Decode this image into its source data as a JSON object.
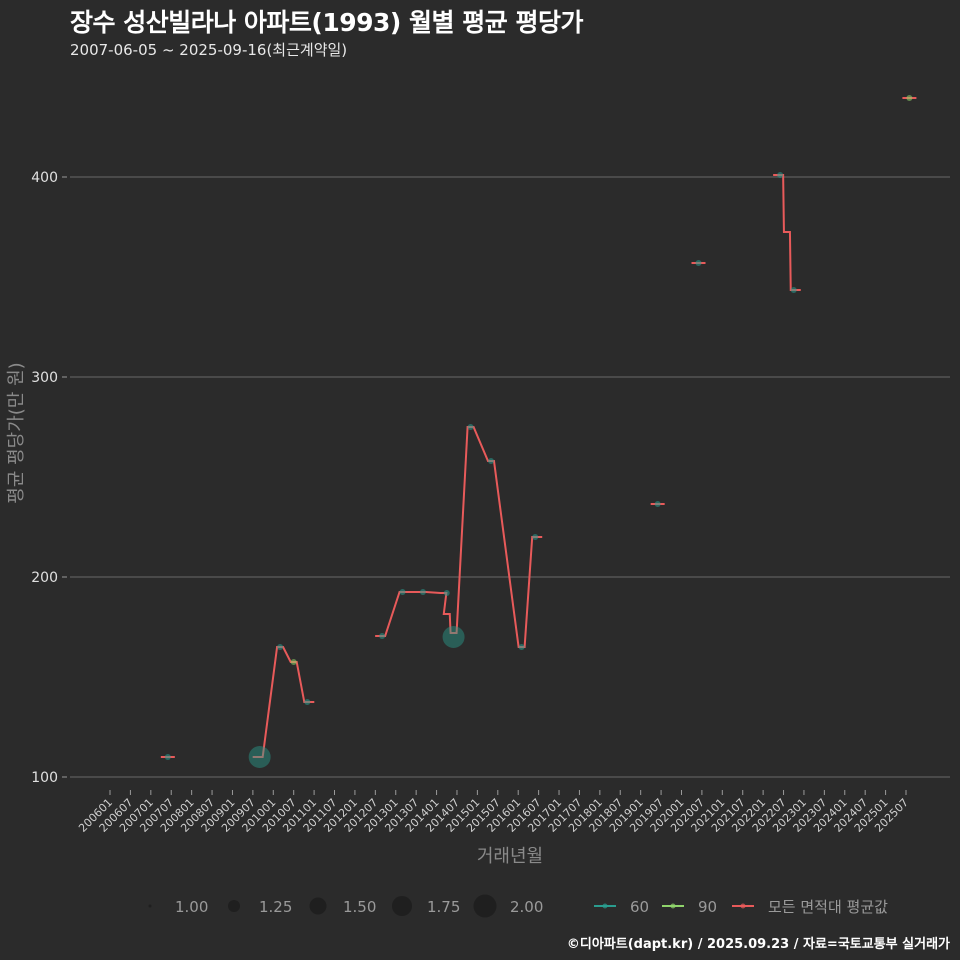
{
  "header": {
    "title": "장수 성산빌라나 아파트(1993) 월별 평균 평당가",
    "subtitle": "2007-06-05 ~ 2025-09-16(최근계약일)"
  },
  "footer": {
    "credit": "©디아파트(dapt.kr) / 2025.09.23 / 자료=국토교통부 실거래가"
  },
  "colors": {
    "background": "#2b2b2b",
    "grid": "#6a6a6a",
    "series_60": "#2a9d8f",
    "series_90": "#8fd46b",
    "series_avg": "#e85a5a"
  },
  "chart_data": {
    "type": "line",
    "title": "장수 성산빌라나 아파트(1993) 월별 평균 평당가",
    "subtitle": "2007-06-05 ~ 2025-09-16(최근계약일)",
    "xlabel": "거래년월",
    "ylabel": "평균 평당가(만 원)",
    "ylim": [
      95,
      445
    ],
    "yticks": [
      100,
      200,
      300,
      400
    ],
    "grid": true,
    "x_ticks": [
      "200601",
      "200607",
      "200701",
      "200707",
      "200801",
      "200807",
      "200901",
      "200907",
      "201001",
      "201007",
      "201101",
      "201107",
      "201201",
      "201207",
      "201301",
      "201307",
      "201401",
      "201407",
      "201501",
      "201507",
      "201601",
      "201607",
      "201701",
      "201707",
      "201801",
      "201807",
      "201901",
      "201907",
      "202001",
      "202007",
      "202101",
      "202107",
      "202201",
      "202207",
      "202301",
      "202307",
      "202401",
      "202407",
      "202501",
      "202507"
    ],
    "legend": {
      "size": {
        "title": "",
        "values": [
          "1.00",
          "1.25",
          "1.50",
          "1.75",
          "2.00"
        ]
      },
      "color": [
        {
          "name": "60",
          "color": "#2a9d8f"
        },
        {
          "name": "90",
          "color": "#8fd46b"
        },
        {
          "name": "모든 면적대 평균값",
          "color": "#e85a5a"
        }
      ],
      "position": "bottom"
    },
    "series": [
      {
        "name": "60",
        "points": [
          {
            "x": "200706",
            "y": 110,
            "size": 1
          },
          {
            "x": "200909",
            "y": 110,
            "size": 2
          },
          {
            "x": "201003",
            "y": 165,
            "size": 1
          },
          {
            "x": "201011",
            "y": 137.5,
            "size": 1
          },
          {
            "x": "201209",
            "y": 170.5,
            "size": 1
          },
          {
            "x": "201303",
            "y": 192.5,
            "size": 1
          },
          {
            "x": "201309",
            "y": 192.5,
            "size": 1
          },
          {
            "x": "201404",
            "y": 192,
            "size": 1
          },
          {
            "x": "201406",
            "y": 170,
            "size": 2
          },
          {
            "x": "201411",
            "y": 275,
            "size": 1
          },
          {
            "x": "201505",
            "y": 258,
            "size": 1
          },
          {
            "x": "201514",
            "y": 165,
            "size": 1
          },
          {
            "x": "201606",
            "y": 220,
            "size": 1
          },
          {
            "x": "201906",
            "y": 236.5,
            "size": 1
          },
          {
            "x": "202006",
            "y": 357,
            "size": 1
          },
          {
            "x": "202206",
            "y": 401,
            "size": 1
          },
          {
            "x": "202210",
            "y": 343.5,
            "size": 1
          }
        ]
      },
      {
        "name": "90",
        "points": [
          {
            "x": "201007",
            "y": 157.5,
            "size": 1
          },
          {
            "x": "202508",
            "y": 439.5,
            "size": 1
          }
        ]
      },
      {
        "name": "모든 면적대 평균값",
        "points": [
          {
            "x": "200706",
            "y": 110
          },
          {
            "x": "200909",
            "y": 110
          },
          {
            "x": "201003",
            "y": 165
          },
          {
            "x": "201007",
            "y": 157.5
          },
          {
            "x": "201011",
            "y": 137.5
          },
          {
            "x": "201209",
            "y": 170.5
          },
          {
            "x": "201303",
            "y": 192.5
          },
          {
            "x": "201309",
            "y": 192.5
          },
          {
            "x": "201403",
            "y": 192
          },
          {
            "x": "201404",
            "y": 181.5
          },
          {
            "x": "201406",
            "y": 172
          },
          {
            "x": "201411",
            "y": 275
          },
          {
            "x": "201505",
            "y": 258
          },
          {
            "x": "201602",
            "y": 165
          },
          {
            "x": "201606",
            "y": 220
          },
          {
            "x": "201906",
            "y": 236.5
          },
          {
            "x": "202006",
            "y": 357
          },
          {
            "x": "202206",
            "y": 401
          },
          {
            "x": "202208",
            "y": 372.5
          },
          {
            "x": "202210",
            "y": 343.5
          },
          {
            "x": "202508",
            "y": 439.5
          }
        ]
      }
    ]
  }
}
